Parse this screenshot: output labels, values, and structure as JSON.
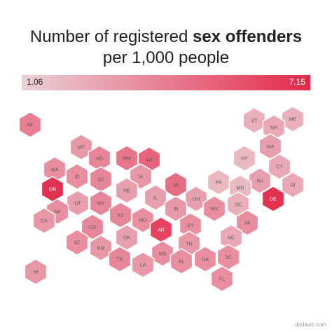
{
  "title": {
    "line1_regular": "Number of registered ",
    "line1_bold": "sex offenders",
    "line2": "per 1,000 people"
  },
  "legend": {
    "min_label": "1.06",
    "max_label": "7.15",
    "min_value": 1.06,
    "max_value": 7.15,
    "min_color": "#ead2d7",
    "max_color": "#e4294a"
  },
  "credit": "dadaviz.com",
  "states": [
    {
      "abbr": "AK",
      "level": 0.5
    },
    {
      "abbr": "HI",
      "level": 0.35
    },
    {
      "abbr": "ME",
      "level": 0.2
    },
    {
      "abbr": "VT",
      "level": 0.2
    },
    {
      "abbr": "NH",
      "level": 0.25
    },
    {
      "abbr": "MA",
      "level": 0.3
    },
    {
      "abbr": "NY",
      "level": 0.15
    },
    {
      "abbr": "CT",
      "level": 0.25
    },
    {
      "abbr": "RI",
      "level": 0.25
    },
    {
      "abbr": "PA",
      "level": 0.15
    },
    {
      "abbr": "NJ",
      "level": 0.3
    },
    {
      "abbr": "MD",
      "level": 0.15
    },
    {
      "abbr": "DE",
      "level": 0.95
    },
    {
      "abbr": "DC",
      "level": 0.2
    },
    {
      "abbr": "MT",
      "level": 0.35
    },
    {
      "abbr": "ND",
      "level": 0.45
    },
    {
      "abbr": "MN",
      "level": 0.55
    },
    {
      "abbr": "WI",
      "level": 0.65
    },
    {
      "abbr": "MI",
      "level": 0.6
    },
    {
      "abbr": "WA",
      "level": 0.4
    },
    {
      "abbr": "ID",
      "level": 0.4
    },
    {
      "abbr": "SD",
      "level": 0.45
    },
    {
      "abbr": "IA",
      "level": 0.35
    },
    {
      "abbr": "OH",
      "level": 0.3
    },
    {
      "abbr": "OR",
      "level": 0.95
    },
    {
      "abbr": "UT",
      "level": 0.3
    },
    {
      "abbr": "WY",
      "level": 0.45
    },
    {
      "abbr": "NE",
      "level": 0.3
    },
    {
      "abbr": "IL",
      "level": 0.3
    },
    {
      "abbr": "IN",
      "level": 0.35
    },
    {
      "abbr": "WV",
      "level": 0.4
    },
    {
      "abbr": "VA",
      "level": 0.4
    },
    {
      "abbr": "NV",
      "level": 0.4
    },
    {
      "abbr": "CA",
      "level": 0.35
    },
    {
      "abbr": "CO",
      "level": 0.45
    },
    {
      "abbr": "KS",
      "level": 0.45
    },
    {
      "abbr": "MO",
      "level": 0.4
    },
    {
      "abbr": "KY",
      "level": 0.4
    },
    {
      "abbr": "NC",
      "level": 0.25
    },
    {
      "abbr": "AZ",
      "level": 0.4
    },
    {
      "abbr": "OK",
      "level": 0.3
    },
    {
      "abbr": "AR",
      "level": 0.85
    },
    {
      "abbr": "TN",
      "level": 0.35
    },
    {
      "abbr": "SC",
      "level": 0.4
    },
    {
      "abbr": "NM",
      "level": 0.35
    },
    {
      "abbr": "MS",
      "level": 0.4
    },
    {
      "abbr": "AL",
      "level": 0.4
    },
    {
      "abbr": "GA",
      "level": 0.4
    },
    {
      "abbr": "TX",
      "level": 0.45
    },
    {
      "abbr": "LA",
      "level": 0.35
    },
    {
      "abbr": "FL",
      "level": 0.4
    }
  ]
}
